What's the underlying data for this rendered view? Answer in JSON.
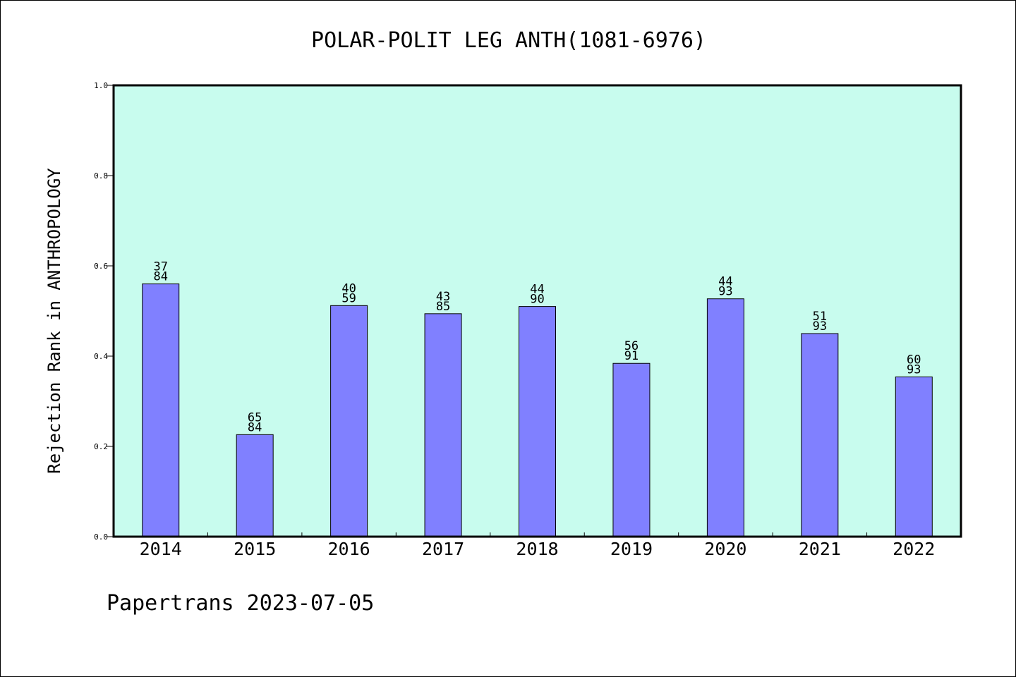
{
  "chart_data": {
    "type": "bar",
    "title": "POLAR-POLIT LEG ANTH(1081-6976)",
    "xlabel": "",
    "ylabel": "Rejection Rank in ANTHROPOLOGY",
    "ylim": [
      0,
      1.0
    ],
    "yticks": [
      "0.0",
      "0.2",
      "0.4",
      "0.6",
      "0.8",
      "1.0"
    ],
    "categories": [
      "2014",
      "2015",
      "2016",
      "2017",
      "2018",
      "2019",
      "2020",
      "2021",
      "2022"
    ],
    "values": [
      0.56,
      0.226,
      0.512,
      0.494,
      0.51,
      0.384,
      0.527,
      0.45,
      0.354
    ],
    "labels_top": [
      "37",
      "65",
      "40",
      "43",
      "44",
      "56",
      "44",
      "51",
      "60"
    ],
    "labels_bottom": [
      "84",
      "84",
      "59",
      "85",
      "90",
      "91",
      "93",
      "93",
      "93"
    ],
    "grid": false,
    "colors": {
      "plot_bg": "#c8fcee",
      "bar": "#8080ff",
      "bar_edge": "#000000"
    }
  },
  "footer": {
    "text": "Papertrans 2023-07-05"
  }
}
